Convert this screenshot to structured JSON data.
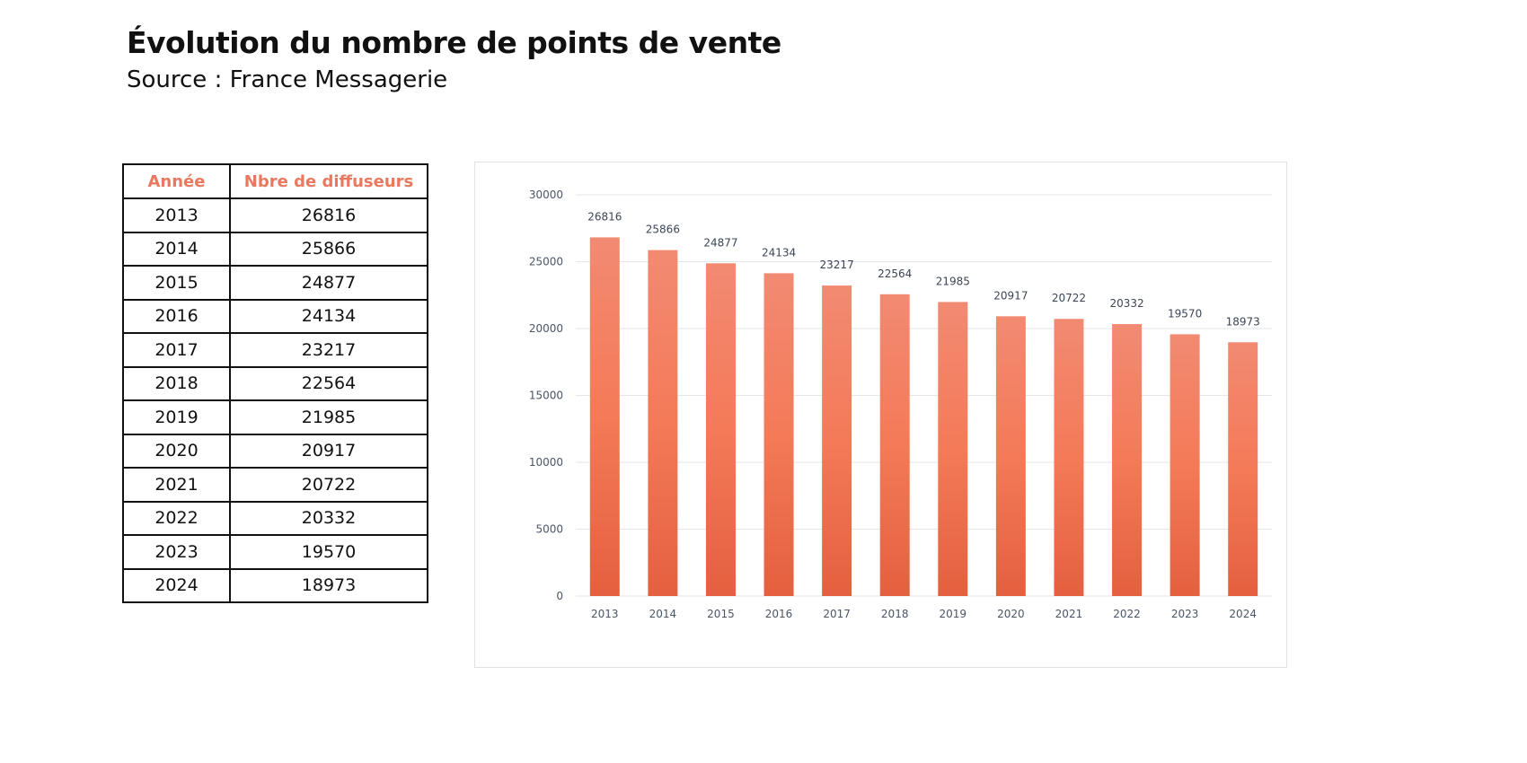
{
  "header": {
    "title": "Évolution du nombre de points de vente",
    "subtitle": "Source : France Messagerie"
  },
  "table": {
    "headers": [
      "Année",
      "Nbre de diffuseurs"
    ],
    "rows": [
      [
        "2013",
        "26816"
      ],
      [
        "2014",
        "25866"
      ],
      [
        "2015",
        "24877"
      ],
      [
        "2016",
        "24134"
      ],
      [
        "2017",
        "23217"
      ],
      [
        "2018",
        "22564"
      ],
      [
        "2019",
        "21985"
      ],
      [
        "2020",
        "20917"
      ],
      [
        "2021",
        "20722"
      ],
      [
        "2022",
        "20332"
      ],
      [
        "2023",
        "19570"
      ],
      [
        "2024",
        "18973"
      ]
    ],
    "header_color": "#e8795e"
  },
  "chart_data": {
    "type": "bar",
    "categories": [
      "2013",
      "2014",
      "2015",
      "2016",
      "2017",
      "2018",
      "2019",
      "2020",
      "2021",
      "2022",
      "2023",
      "2024"
    ],
    "values": [
      26816,
      25866,
      24877,
      24134,
      23217,
      22564,
      21985,
      20917,
      20722,
      20332,
      19570,
      18973
    ],
    "ylim": [
      0,
      30000
    ],
    "yticks": [
      0,
      5000,
      10000,
      15000,
      20000,
      25000,
      30000
    ],
    "grid": true,
    "data_labels": true,
    "bar_color_top": "#f28a72",
    "bar_color_mid": "#f47a58",
    "bar_color_bottom": "#e4603f"
  }
}
